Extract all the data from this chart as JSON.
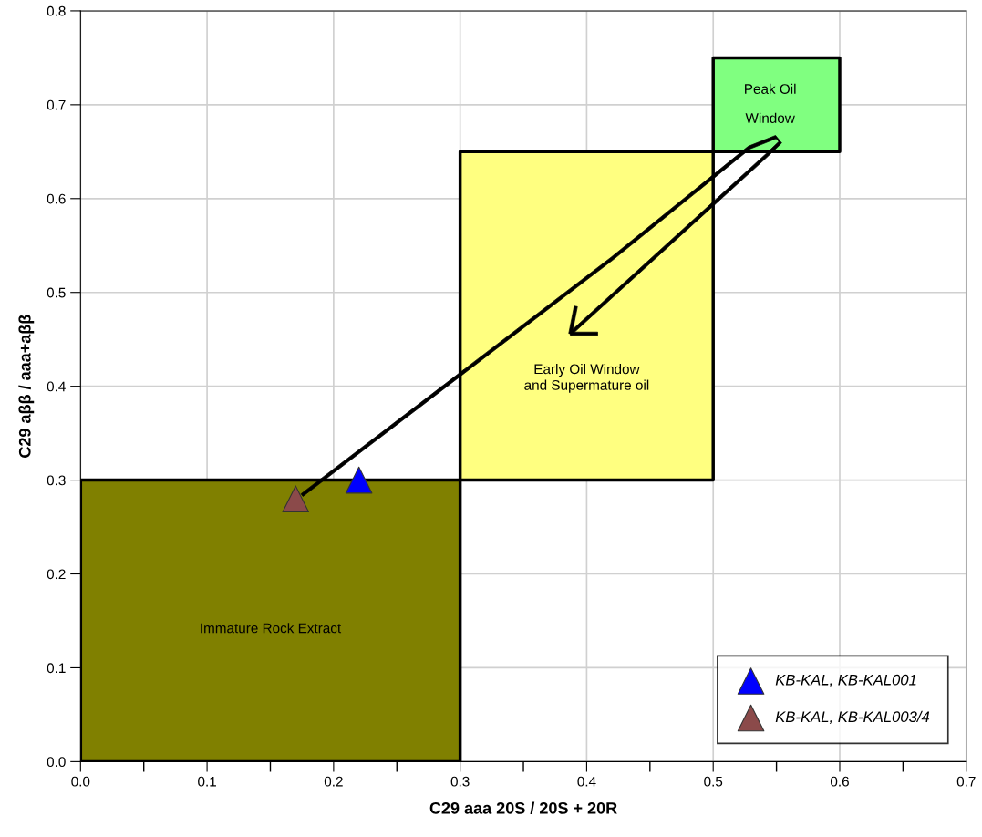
{
  "chart_data": {
    "type": "scatter",
    "xlabel": "C29 aaa 20S / 20S + 20R",
    "ylabel": "C29 aββ / aaa+aββ",
    "xlim": [
      0,
      0.7
    ],
    "ylim": [
      0,
      0.8
    ],
    "xticks": [
      {
        "value": 0,
        "label": "0.0"
      },
      0.1,
      0.2,
      0.3,
      0.4,
      0.5,
      0.6,
      0.7
    ],
    "yticks": [
      {
        "value": 0,
        "label": "0.0"
      },
      0.1,
      0.2,
      0.3,
      0.4,
      0.5,
      0.6,
      0.7,
      0.8
    ],
    "grid": true,
    "legend": "bottom right",
    "series": [
      {
        "type": "area",
        "color": "#808000",
        "x": [
          0,
          0.3,
          0.3,
          0,
          0
        ],
        "values": [
          0,
          0,
          0.3,
          0.3,
          0
        ]
      },
      {
        "type": "area",
        "color": "#ffff80",
        "x": [
          0.3,
          0.5,
          0.5,
          0.3,
          0.3
        ],
        "values": [
          0.3,
          0.3,
          0.65,
          0.65,
          0.3
        ]
      },
      {
        "type": "area",
        "color": "#80ff80",
        "x": [
          0.5,
          0.6,
          0.6,
          0.5,
          0.5
        ],
        "values": [
          0.65,
          0.65,
          0.75,
          0.75,
          0.65
        ]
      },
      {
        "name": "KB-KAL, KB-KAL001",
        "color": "#0000ff",
        "marker": "triangle",
        "x": [
          0.22
        ],
        "values": [
          0.3
        ]
      },
      {
        "name": "KB-KAL, KB-KAL003/4",
        "color": "#8b4a4a",
        "marker": "triangle",
        "x": [
          0.17
        ],
        "values": [
          0.28
        ]
      }
    ],
    "annotations": [
      "Immature Rock Extract",
      "Early Oil Window\nand Supermature oil",
      "Peak Oil\nWindow"
    ]
  }
}
